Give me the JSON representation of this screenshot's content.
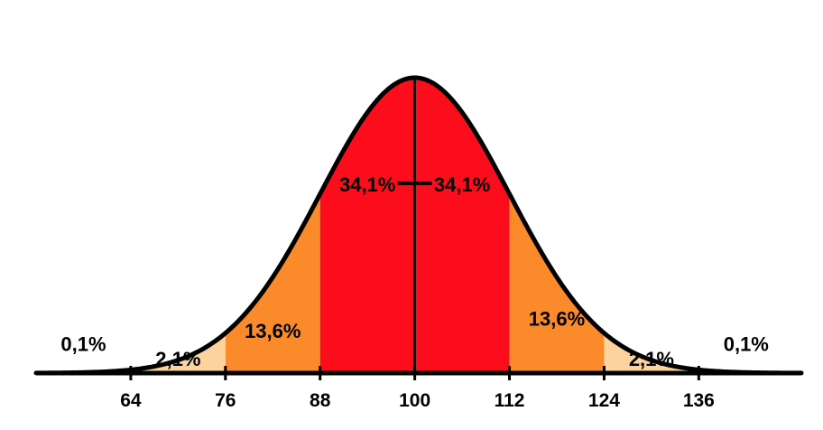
{
  "chart_data": {
    "type": "area",
    "distribution": "normal",
    "mean": 100,
    "sd": 12,
    "xlim": [
      52,
      149
    ],
    "ticks": [
      {
        "value": 64,
        "label": "64"
      },
      {
        "value": 76,
        "label": "76"
      },
      {
        "value": 88,
        "label": "88"
      },
      {
        "value": 100,
        "label": "100"
      },
      {
        "value": 112,
        "label": "112"
      },
      {
        "value": 124,
        "label": "124"
      },
      {
        "value": 136,
        "label": "136"
      }
    ],
    "bands": [
      {
        "from": 76,
        "to": 88,
        "color": "#fa8a2a"
      },
      {
        "from": 88,
        "to": 100,
        "color": "#fc0d1b"
      },
      {
        "from": 100,
        "to": 112,
        "color": "#fc0d1b"
      },
      {
        "from": 112,
        "to": 124,
        "color": "#fa8a2a"
      },
      {
        "from": 64,
        "to": 76,
        "color": "#fdd39d"
      },
      {
        "from": 124,
        "to": 136,
        "color": "#fdd39d"
      }
    ],
    "region_labels": [
      {
        "text": "0,1%",
        "x": 58,
        "y": 0.075
      },
      {
        "text": "2,1%",
        "x": 70,
        "y": 0.025
      },
      {
        "text": "13,6%",
        "x": 82,
        "y": 0.12
      },
      {
        "text": "34,1%",
        "x": 94,
        "y": 0.615
      },
      {
        "text": "34,1%",
        "x": 106,
        "y": 0.615
      },
      {
        "text": "13,6%",
        "x": 118,
        "y": 0.16
      },
      {
        "text": "2,1%",
        "x": 130,
        "y": 0.025
      },
      {
        "text": "0,1%",
        "x": 142,
        "y": 0.075
      }
    ],
    "colors": {
      "outline": "#000000",
      "center": "#fc0d1b",
      "inner": "#fa8a2a",
      "outer": "#fdd39d"
    }
  }
}
